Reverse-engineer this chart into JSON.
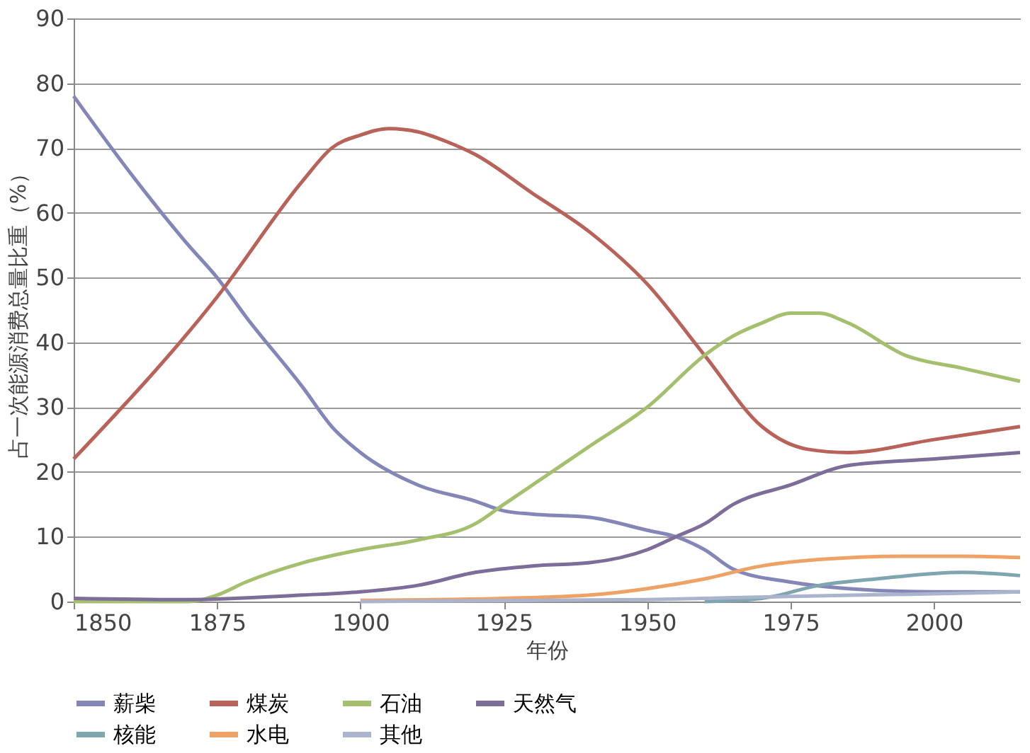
{
  "chart_data": {
    "type": "line",
    "xlabel": "年份",
    "ylabel": "占一次能源消费总量比重（%）",
    "xlim": [
      1850,
      2015
    ],
    "xticks": [
      1850,
      1875,
      1900,
      1925,
      1950,
      1975,
      2000
    ],
    "ylim": [
      0,
      90
    ],
    "yticks": [
      0,
      10,
      20,
      30,
      40,
      50,
      60,
      70,
      80,
      90
    ],
    "grid": "y",
    "legend": "bottom",
    "marker": "none",
    "line_style": "solid",
    "series": [
      {
        "name": "薪柴",
        "color": "#8486b8",
        "x": [
          1850,
          1860,
          1870,
          1875,
          1880,
          1890,
          1895,
          1900,
          1910,
          1920,
          1925,
          1930,
          1940,
          1950,
          1955,
          1960,
          1965,
          1975,
          1985,
          2000,
          2015
        ],
        "values": [
          78,
          66,
          55,
          50,
          44,
          33,
          27,
          23,
          18,
          15.5,
          14,
          13.5,
          13,
          11,
          10,
          8,
          5,
          3,
          2,
          1.5,
          1.5
        ]
      },
      {
        "name": "煤炭",
        "color": "#b8625a",
        "x": [
          1850,
          1875,
          1890,
          1895,
          1900,
          1905,
          1910,
          1915,
          1920,
          1930,
          1940,
          1950,
          1960,
          1970,
          1978,
          1985,
          2000,
          2015
        ],
        "values": [
          22,
          47,
          65,
          70,
          72,
          73,
          72.5,
          71,
          69,
          63,
          57,
          49,
          38,
          27,
          23.5,
          23,
          25,
          27
        ]
      },
      {
        "name": "石油",
        "color": "#a6bf6e",
        "x": [
          1850,
          1870,
          1875,
          1880,
          1890,
          1900,
          1910,
          1920,
          1925,
          1930,
          1940,
          1950,
          1960,
          1965,
          1970,
          1975,
          1980,
          1985,
          1995,
          2005,
          2015
        ],
        "values": [
          0,
          0,
          1,
          3,
          6,
          8,
          9.5,
          12,
          15,
          18,
          24,
          30,
          38,
          41,
          43,
          44.5,
          44.5,
          43,
          38,
          36,
          34
        ]
      },
      {
        "name": "天然气",
        "color": "#7d6e99",
        "x": [
          1850,
          1870,
          1890,
          1900,
          1910,
          1920,
          1930,
          1940,
          1950,
          1955,
          1960,
          1965,
          1975,
          1985,
          2000,
          2015
        ],
        "values": [
          0.5,
          0.3,
          1,
          1.5,
          2.5,
          4.5,
          5.5,
          6,
          8,
          10,
          12,
          15,
          18,
          21,
          22,
          23
        ]
      },
      {
        "name": "核能",
        "color": "#7fa5b0",
        "x": [
          1960,
          1970,
          1980,
          1990,
          2005,
          2015
        ],
        "values": [
          0,
          0.5,
          2.5,
          3.5,
          4.5,
          4
        ]
      },
      {
        "name": "水电",
        "color": "#eea266",
        "x": [
          1900,
          1925,
          1940,
          1950,
          1960,
          1970,
          1980,
          1995,
          2005,
          2015
        ],
        "values": [
          0.2,
          0.5,
          1,
          2,
          3.5,
          5.5,
          6.5,
          7,
          7,
          6.8
        ]
      },
      {
        "name": "其他",
        "color": "#aab4cc",
        "x": [
          1900,
          1950,
          1975,
          2000,
          2015
        ],
        "values": [
          0,
          0.3,
          0.8,
          1.2,
          1.5
        ]
      }
    ]
  }
}
